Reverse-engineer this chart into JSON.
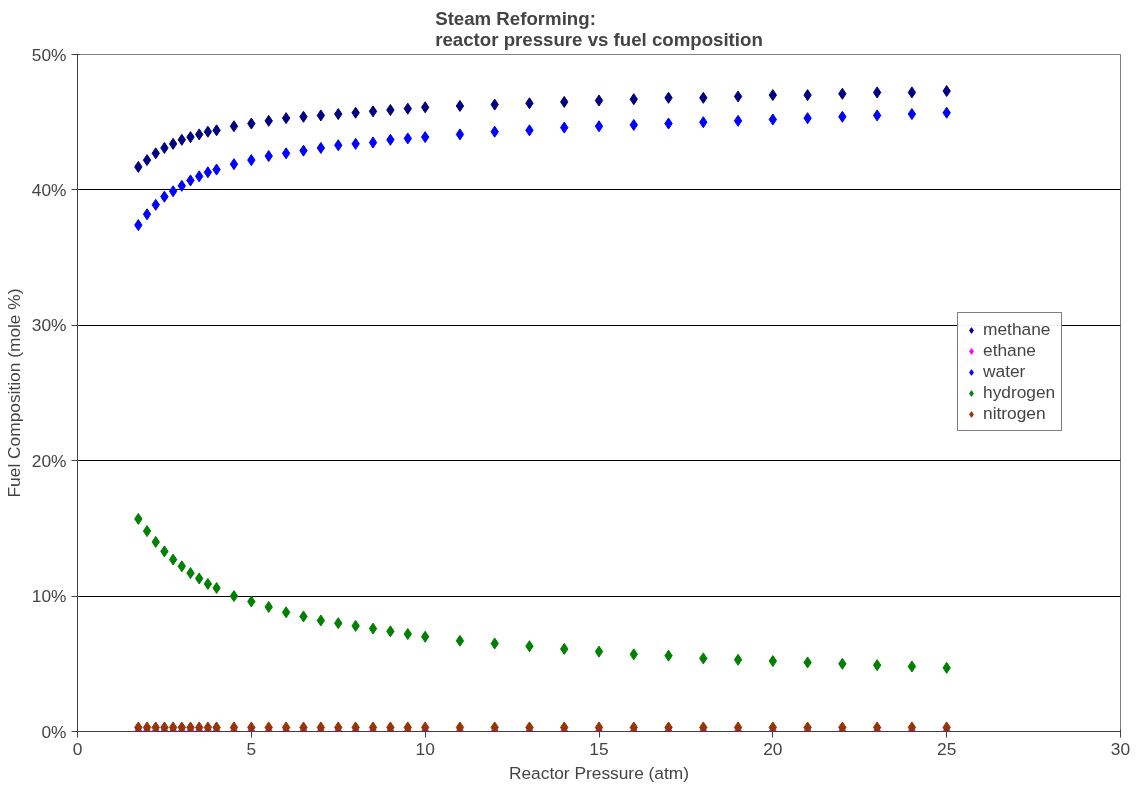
{
  "chart_data": {
    "type": "scatter",
    "title": "Steam Reforming:\nreactor pressure vs fuel composition",
    "xlabel": "Reactor Pressure (atm)",
    "ylabel": "Fuel Composition (mole %)",
    "x": [
      1.75,
      2,
      2.25,
      2.5,
      2.75,
      3,
      3.25,
      3.5,
      3.75,
      4,
      4.5,
      5,
      5.5,
      6,
      6.5,
      7,
      7.5,
      8,
      8.5,
      9,
      9.5,
      10,
      11,
      12,
      13,
      14,
      15,
      16,
      17,
      18,
      19,
      20,
      21,
      22,
      23,
      24,
      25
    ],
    "series": [
      {
        "name": "methane",
        "color": "#000080",
        "values": [
          41.7,
          42.2,
          42.7,
          43.1,
          43.4,
          43.7,
          43.9,
          44.1,
          44.3,
          44.4,
          44.7,
          44.9,
          45.1,
          45.3,
          45.4,
          45.5,
          45.6,
          45.7,
          45.8,
          45.9,
          46.0,
          46.1,
          46.2,
          46.3,
          46.4,
          46.5,
          46.6,
          46.7,
          46.8,
          46.8,
          46.9,
          47.0,
          47.0,
          47.1,
          47.2,
          47.2,
          47.3
        ]
      },
      {
        "name": "ethane",
        "color": "#ff00ff",
        "values": [
          0,
          0,
          0,
          0,
          0,
          0,
          0,
          0,
          0,
          0,
          0,
          0,
          0,
          0,
          0,
          0,
          0,
          0,
          0,
          0,
          0,
          0,
          0,
          0,
          0,
          0,
          0,
          0,
          0,
          0,
          0,
          0,
          0,
          0,
          0,
          0,
          0
        ]
      },
      {
        "name": "water",
        "color": "#0000ff",
        "values": [
          37.4,
          38.2,
          38.9,
          39.5,
          39.9,
          40.3,
          40.7,
          41.0,
          41.3,
          41.5,
          41.9,
          42.2,
          42.5,
          42.7,
          42.9,
          43.1,
          43.3,
          43.4,
          43.5,
          43.7,
          43.8,
          43.9,
          44.1,
          44.3,
          44.4,
          44.6,
          44.7,
          44.8,
          44.9,
          45.0,
          45.1,
          45.2,
          45.3,
          45.4,
          45.5,
          45.6,
          45.7
        ]
      },
      {
        "name": "hydrogen",
        "color": "#008000",
        "values": [
          15.7,
          14.8,
          14.0,
          13.3,
          12.7,
          12.2,
          11.7,
          11.3,
          10.9,
          10.6,
          10.0,
          9.6,
          9.2,
          8.8,
          8.5,
          8.2,
          8.0,
          7.8,
          7.6,
          7.4,
          7.2,
          7.0,
          6.7,
          6.5,
          6.3,
          6.1,
          5.9,
          5.7,
          5.6,
          5.4,
          5.3,
          5.2,
          5.1,
          5.0,
          4.9,
          4.8,
          4.7
        ]
      },
      {
        "name": "nitrogen",
        "color": "#993300",
        "values": [
          0.3,
          0.3,
          0.3,
          0.3,
          0.3,
          0.3,
          0.3,
          0.3,
          0.3,
          0.3,
          0.3,
          0.3,
          0.3,
          0.3,
          0.3,
          0.3,
          0.3,
          0.3,
          0.3,
          0.3,
          0.3,
          0.3,
          0.3,
          0.3,
          0.3,
          0.3,
          0.3,
          0.3,
          0.3,
          0.3,
          0.3,
          0.3,
          0.3,
          0.3,
          0.3,
          0.3,
          0.3
        ]
      }
    ],
    "xlim": [
      0,
      30
    ],
    "xticks": [
      0,
      5,
      10,
      15,
      20,
      25,
      30
    ],
    "ylim": [
      0,
      50
    ],
    "yticks": [
      {
        "value": 0,
        "label": "0%"
      },
      {
        "value": 10,
        "label": "10%"
      },
      {
        "value": 20,
        "label": "20%"
      },
      {
        "value": 30,
        "label": "30%"
      },
      {
        "value": 40,
        "label": "40%"
      },
      {
        "value": 50,
        "label": "50%"
      }
    ],
    "grid": "y",
    "legend": "right",
    "marker": "diamond"
  }
}
